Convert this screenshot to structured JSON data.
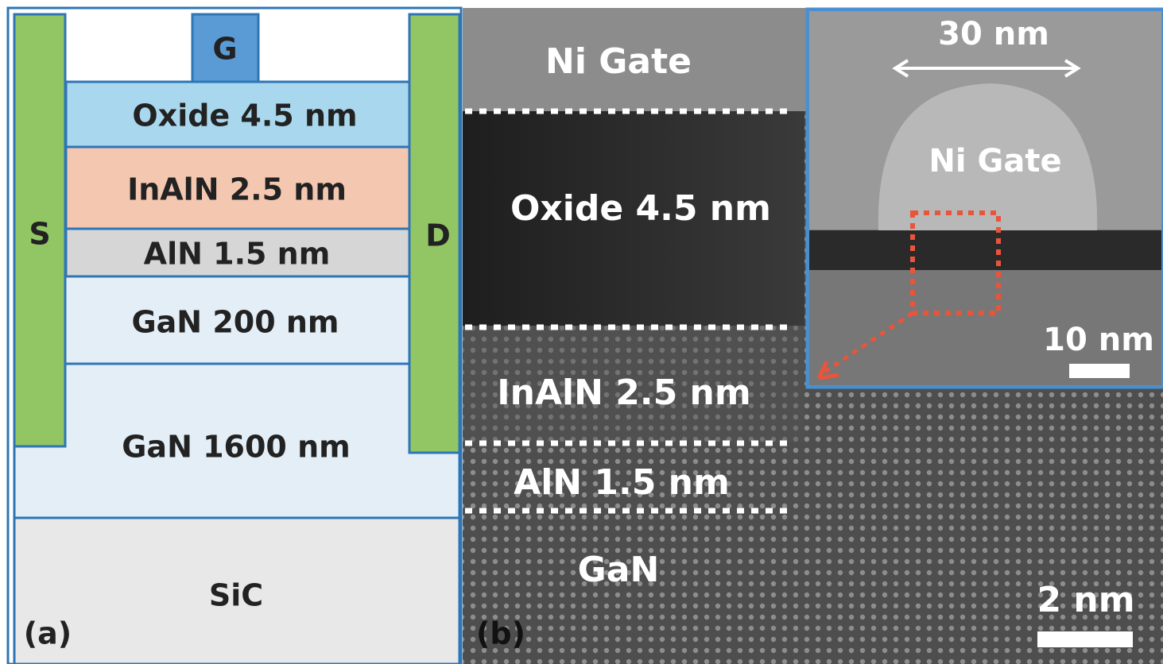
{
  "panel_a": {
    "label": "(a)",
    "electrodes": {
      "source": "S",
      "gate": "G",
      "drain": "D"
    },
    "layers": [
      "Oxide 4.5 nm",
      "InAlN 2.5 nm",
      "AlN 1.5 nm",
      "GaN 200 nm",
      "GaN 1600 nm",
      "SiC"
    ]
  },
  "panel_b": {
    "label": "(b)",
    "layers": [
      "Ni Gate",
      "Oxide 4.5 nm",
      "InAlN 2.5 nm",
      "AlN 1.5 nm",
      "GaN"
    ],
    "scale_bar": "2 nm",
    "inset": {
      "width": "30 nm",
      "gate": "Ni Gate",
      "scale_bar": "10 nm"
    }
  }
}
